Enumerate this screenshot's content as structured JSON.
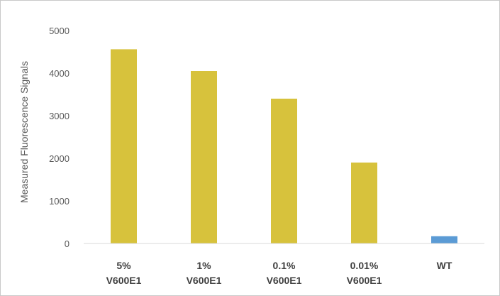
{
  "chart_data": {
    "type": "bar",
    "categories": [
      [
        "5%",
        "V600E1"
      ],
      [
        "1%",
        "V600E1"
      ],
      [
        "0.1%",
        "V600E1"
      ],
      [
        "0.01%",
        "V600E1"
      ],
      [
        "WT"
      ]
    ],
    "values": [
      4560,
      4050,
      3400,
      1900,
      170
    ],
    "bar_colors": [
      "#d7c23c",
      "#d7c23c",
      "#d7c23c",
      "#d7c23c",
      "#5b9bd5"
    ],
    "ylabel": "Measured Fluorescence Signals",
    "ylim": [
      0,
      5000
    ],
    "yticks": [
      0,
      1000,
      2000,
      3000,
      4000,
      5000
    ],
    "grid": false,
    "legend": "none"
  }
}
